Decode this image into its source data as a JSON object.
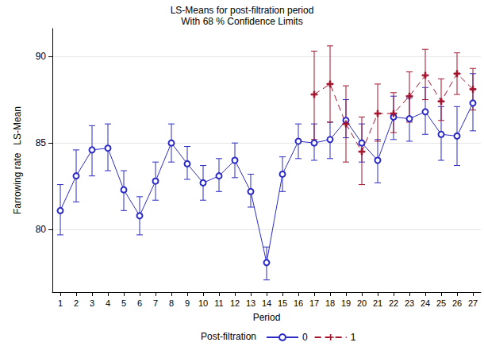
{
  "chart_data": {
    "type": "line",
    "title": "LS-Means for post-filtration period",
    "subtitle": "With 68 % Confidence Limits",
    "x_label": "Period",
    "y_label": "Farrowing rate   LS-Mean",
    "legend_title": "Post-filtration",
    "legend": "bottom",
    "grid": true,
    "categories": [
      "1",
      "2",
      "3",
      "4",
      "5",
      "6",
      "7",
      "8",
      "9",
      "10",
      "11",
      "12",
      "13",
      "14",
      "15",
      "16",
      "17",
      "18",
      "19",
      "20",
      "21",
      "22",
      "23",
      "24",
      "25",
      "26",
      "27"
    ],
    "ylim": [
      76.4,
      91.6
    ],
    "yticks": [
      80,
      85,
      90
    ],
    "series": [
      {
        "name": "0",
        "color": "#2b2bc4",
        "marker": "circle",
        "line_style": "solid",
        "values": [
          81.1,
          83.1,
          84.6,
          84.7,
          82.3,
          80.8,
          82.8,
          85.0,
          83.8,
          82.7,
          83.1,
          84.0,
          82.2,
          78.1,
          83.2,
          85.1,
          85.0,
          85.2,
          86.3,
          85.0,
          84.0,
          86.5,
          86.4,
          86.8,
          85.5,
          85.4,
          87.3
        ],
        "lower": [
          79.7,
          81.6,
          83.1,
          83.4,
          81.1,
          79.7,
          81.7,
          83.9,
          82.9,
          81.7,
          82.2,
          83.0,
          81.3,
          77.1,
          82.2,
          84.1,
          84.0,
          84.1,
          85.3,
          83.9,
          82.7,
          85.2,
          85.1,
          85.5,
          84.0,
          83.7,
          85.7
        ],
        "upper": [
          82.6,
          84.6,
          86.0,
          86.1,
          83.4,
          81.9,
          83.9,
          86.1,
          84.8,
          83.7,
          84.1,
          85.0,
          83.2,
          79.0,
          84.2,
          86.1,
          86.1,
          86.2,
          87.5,
          86.1,
          85.2,
          87.7,
          87.6,
          88.2,
          87.1,
          87.1,
          89.0
        ]
      },
      {
        "name": "1",
        "color": "#a3142e",
        "marker": "plus",
        "line_style": "dashed",
        "values": [
          null,
          null,
          null,
          null,
          null,
          null,
          null,
          null,
          null,
          null,
          null,
          null,
          null,
          null,
          null,
          null,
          87.8,
          88.4,
          86.1,
          84.5,
          86.7,
          86.7,
          87.7,
          88.9,
          87.4,
          89.0,
          88.1
        ],
        "lower": [
          null,
          null,
          null,
          null,
          null,
          null,
          null,
          null,
          null,
          null,
          null,
          null,
          null,
          null,
          null,
          null,
          85.2,
          86.2,
          83.9,
          82.6,
          85.1,
          85.6,
          86.2,
          87.5,
          86.3,
          87.8,
          86.9
        ],
        "upper": [
          null,
          null,
          null,
          null,
          null,
          null,
          null,
          null,
          null,
          null,
          null,
          null,
          null,
          null,
          null,
          null,
          90.3,
          90.6,
          88.3,
          86.5,
          88.4,
          87.9,
          89.1,
          90.4,
          88.7,
          90.2,
          89.3
        ]
      }
    ]
  }
}
